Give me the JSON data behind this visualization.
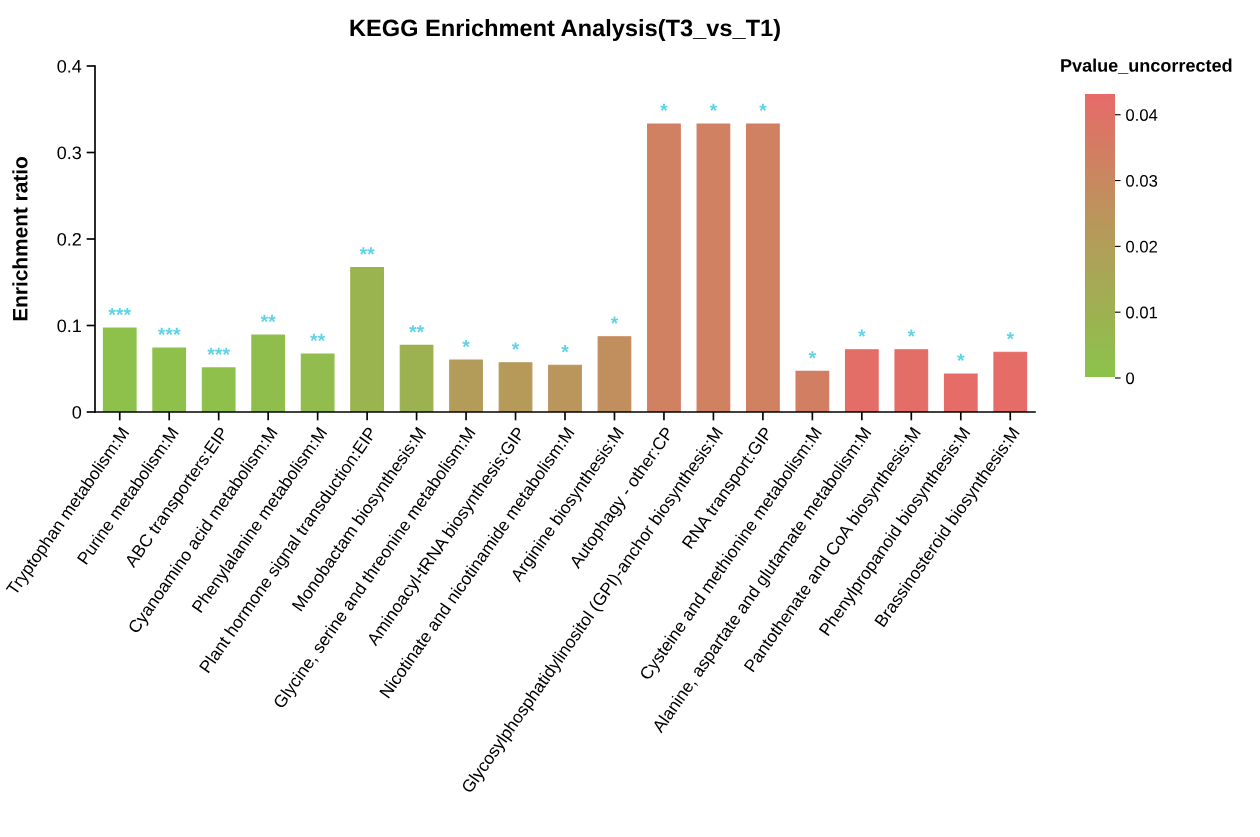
{
  "chart_data": {
    "type": "bar",
    "title": "KEGG Enrichment Analysis(T3_vs_T1)",
    "ylabel": "Enrichment ratio",
    "clabel": "Pvalue_uncorrected",
    "categories": [
      "Tryptophan metabolism:M",
      "Purine metabolism:M",
      "ABC transporters:EIP",
      "Cyanoamino acid metabolism:M",
      "Phenylalanine metabolism:M",
      "Plant hormone signal transduction:EIP",
      "Monobactam biosynthesis:M",
      "Glycine, serine and threonine metabolism:M",
      "Aminoacyl-tRNA biosynthesis:GIP",
      "Nicotinate and nicotinamide metabolism:M",
      "Arginine biosynthesis:M",
      "Autophagy - other:CP",
      "Glycosylphosphatidylinositol (GPI)-anchor biosynthesis:M",
      "RNA transport:GIP",
      "Cysteine and methionine metabolism:M",
      "Alanine, aspartate and glutamate metabolism:M",
      "Pantothenate and CoA biosynthesis:M",
      "Phenylpropanoid biosynthesis:M",
      "Brassinosteroid biosynthesis:M"
    ],
    "values": [
      0.097,
      0.074,
      0.051,
      0.089,
      0.067,
      0.167,
      0.077,
      0.06,
      0.057,
      0.054,
      0.087,
      0.333,
      0.333,
      0.333,
      0.047,
      0.072,
      0.072,
      0.044,
      0.069
    ],
    "cvalues": [
      0.001,
      0.002,
      0.002,
      0.003,
      0.004,
      0.008,
      0.009,
      0.021,
      0.022,
      0.024,
      0.027,
      0.033,
      0.033,
      0.033,
      0.034,
      0.041,
      0.041,
      0.042,
      0.042
    ],
    "colors": [
      "#8bc34a",
      "#8bc34a",
      "#8bc34a",
      "#8cc24a",
      "#90bf4b",
      "#9cb24c",
      "#9faf4e",
      "#b49b5a",
      "#b6995b",
      "#bd925d",
      "#c68a60",
      "#d47c62",
      "#d47c62",
      "#d47c62",
      "#d67a63",
      "#e56c67",
      "#e56c67",
      "#e76a68",
      "#e76a68"
    ],
    "value_labels": [
      "***",
      "***",
      "***",
      "**",
      "**",
      "**",
      "**",
      "*",
      "*",
      "*",
      "*",
      "*",
      "*",
      "*",
      "*",
      "*",
      "*",
      "*",
      "*"
    ],
    "ylim": [
      0,
      0.4
    ],
    "yticks": [
      {
        "value": 0,
        "label": "0"
      },
      0.1,
      0.2,
      0.3,
      0.4
    ],
    "clim": [
      0,
      0.043
    ],
    "cticks": [
      {
        "value": 0,
        "label": "0"
      },
      0.01,
      0.02,
      0.03,
      0.04
    ],
    "grid": false
  }
}
